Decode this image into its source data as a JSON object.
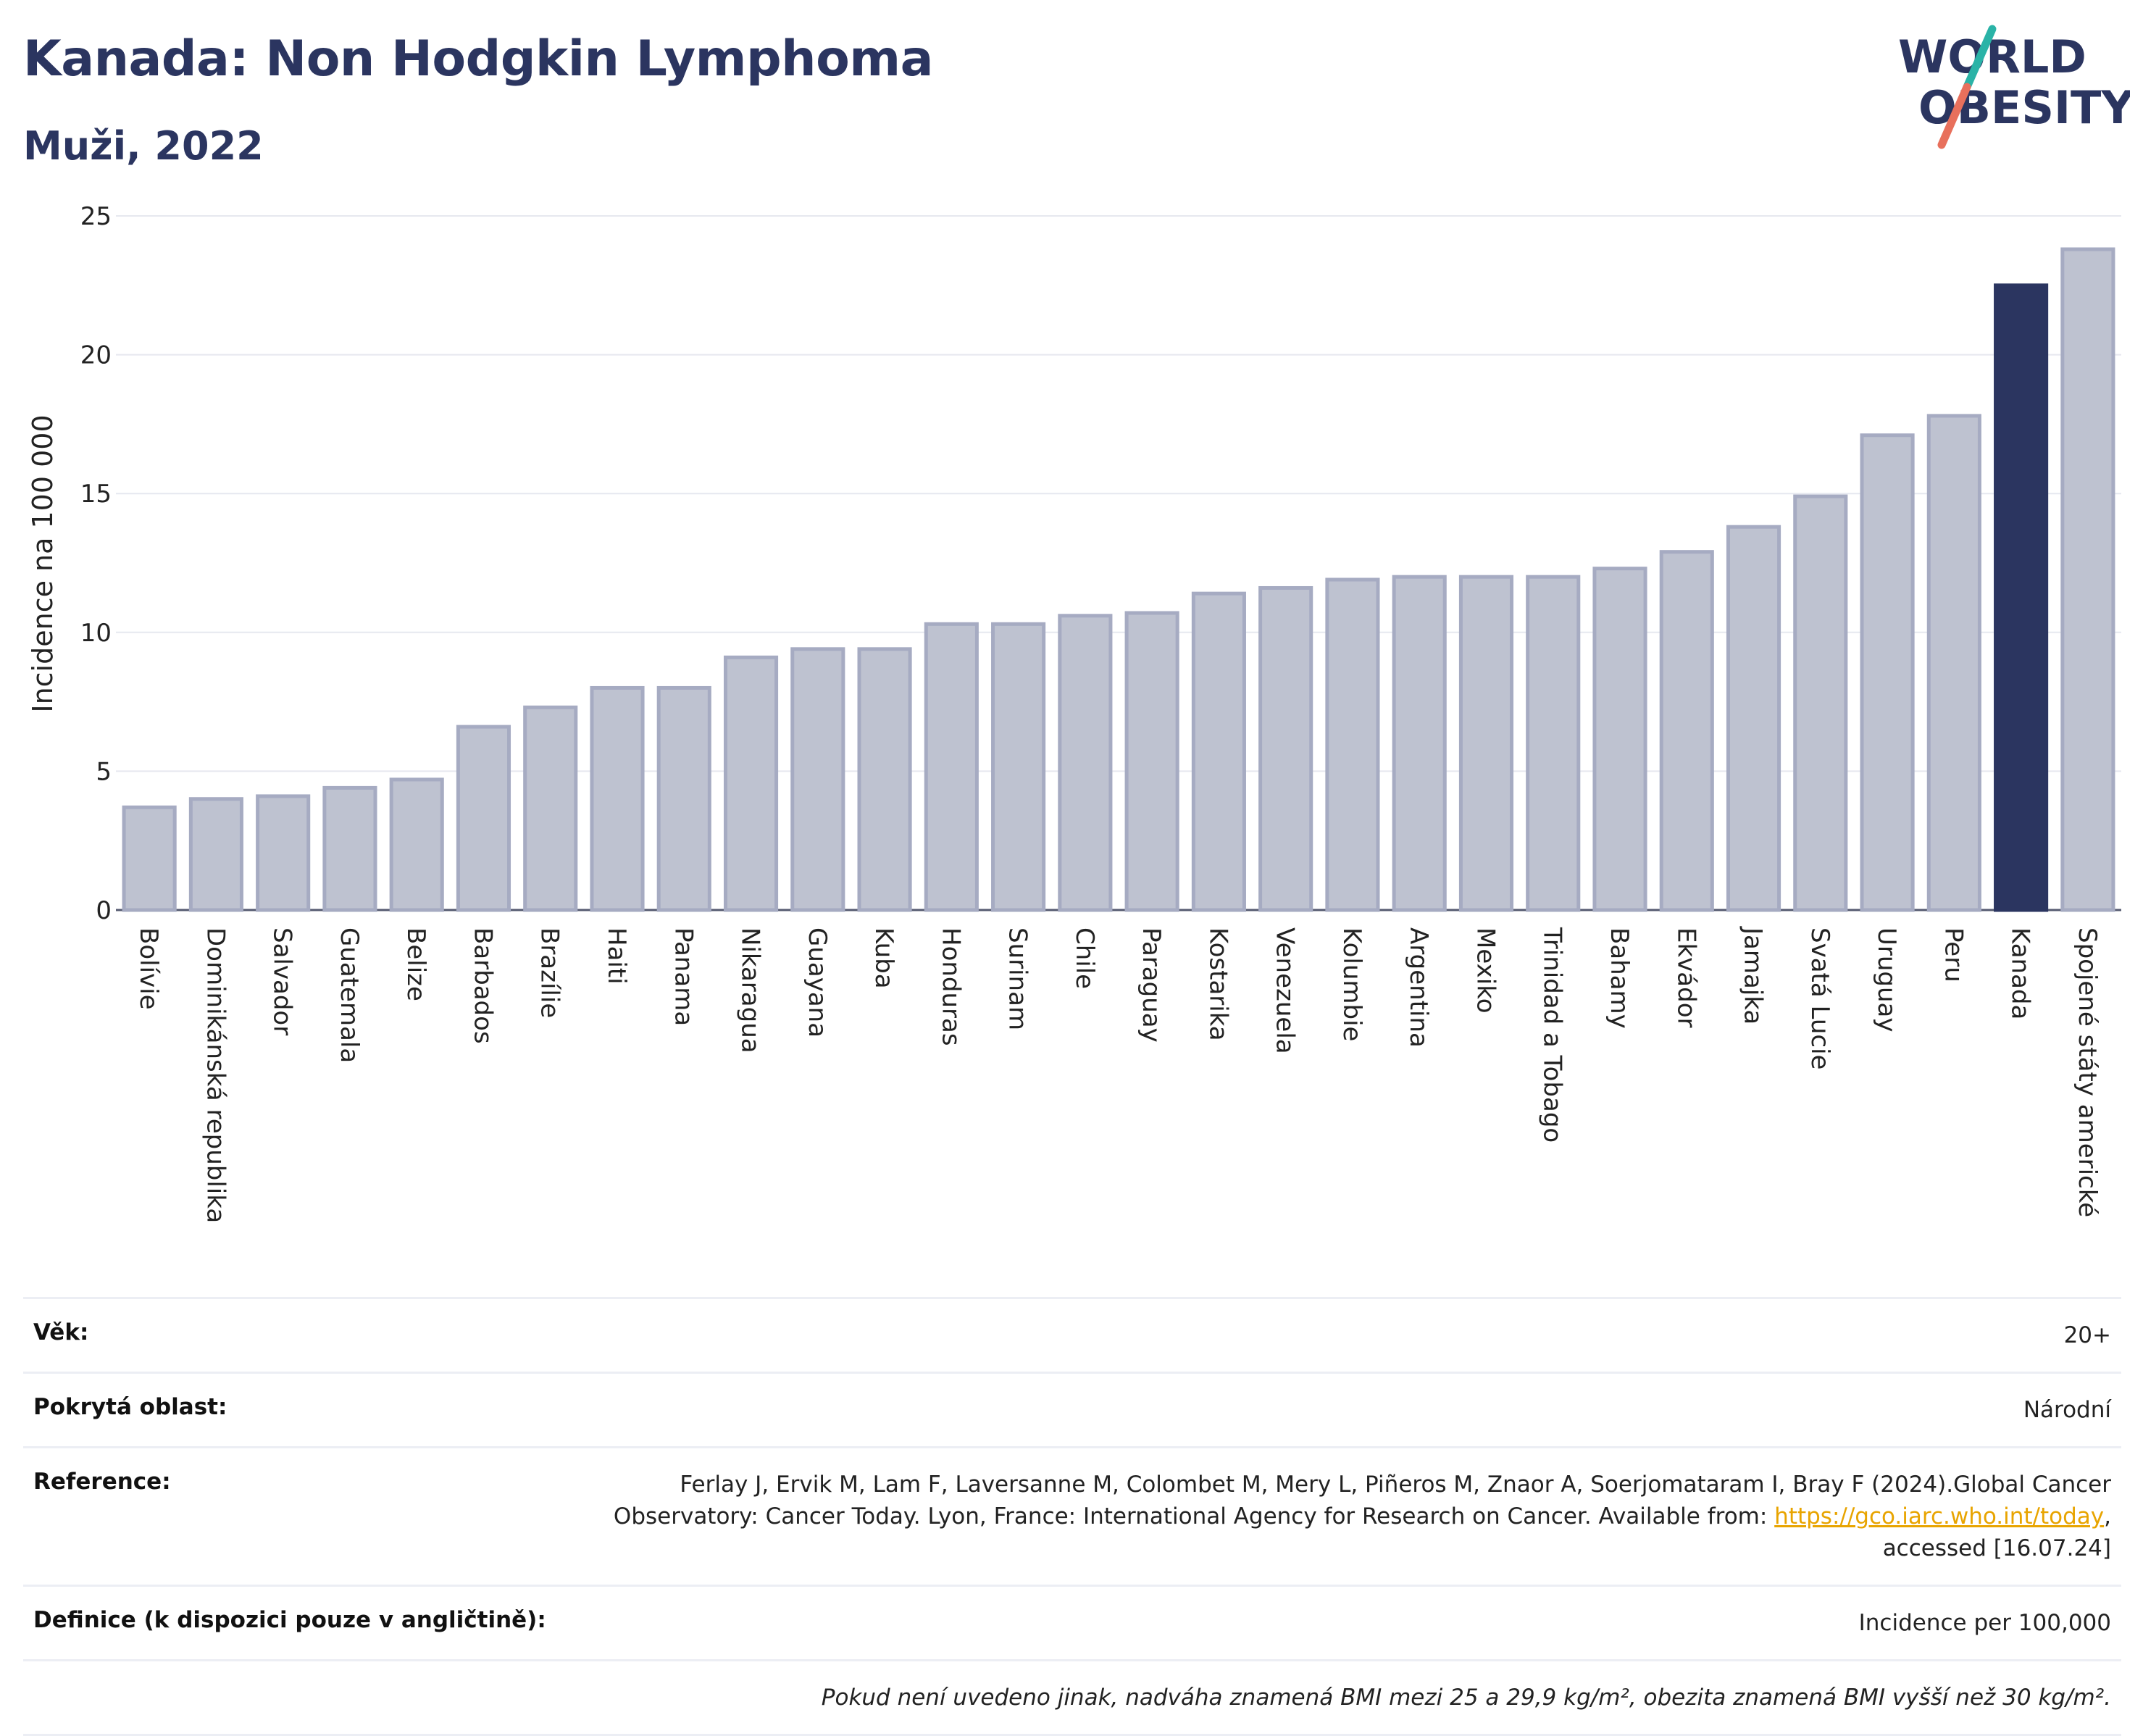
{
  "header": {
    "title": "Kanada: Non Hodgkin Lymphoma",
    "subtitle": "Muži, 2022",
    "logo_line1": "WORLD",
    "logo_line2": "OBESITY"
  },
  "colors": {
    "bar": "#bec2d0",
    "bar_border": "#a6abc2",
    "highlight": "#2b3560",
    "title": "#2b3560",
    "logo_teal": "#2ab3a7",
    "logo_coral": "#e8705c"
  },
  "chart_data": {
    "type": "bar",
    "ylabel": "Incidence na 100 000",
    "ylim": [
      0,
      25
    ],
    "yticks": [
      0,
      5,
      10,
      15,
      20,
      25
    ],
    "grid": true,
    "highlight": "Kanada",
    "categories": [
      "Bolívie",
      "Dominikánská republika",
      "Salvador",
      "Guatemala",
      "Belize",
      "Barbados",
      "Brazílie",
      "Haiti",
      "Panama",
      "Nikaragua",
      "Guayana",
      "Kuba",
      "Honduras",
      "Surinam",
      "Chile",
      "Paraguay",
      "Kostarika",
      "Venezuela",
      "Kolumbie",
      "Argentina",
      "Mexiko",
      "Trinidad a Tobago",
      "Bahamy",
      "Ekvádor",
      "Jamajka",
      "Svatá Lucie",
      "Uruguay",
      "Peru",
      "Kanada",
      "Spojené státy americké"
    ],
    "values": [
      3.7,
      4.0,
      4.1,
      4.4,
      4.7,
      6.6,
      7.3,
      8.0,
      8.0,
      9.1,
      9.4,
      9.4,
      10.3,
      10.3,
      10.6,
      10.7,
      11.4,
      11.6,
      11.9,
      12.0,
      12.0,
      12.0,
      12.3,
      12.9,
      13.8,
      14.9,
      17.1,
      17.8,
      22.5,
      23.8
    ]
  },
  "meta": {
    "rows": [
      {
        "label": "Věk:",
        "value": "20+"
      },
      {
        "label": "Pokrytá oblast:",
        "value": "Národní"
      },
      {
        "label": "Reference:",
        "value_pre": "Ferlay J, Ervik M, Lam F, Laversanne M, Colombet M, Mery L, Piñeros M, Znaor A, Soerjomataram I, Bray F (2024).Global Cancer Observatory: Cancer Today. Lyon, France: International Agency for Research on Cancer. Available from: ",
        "link": "https://gco.iarc.who.int/today",
        "value_post": ", accessed [16.07.24]"
      },
      {
        "label": "Definice (k dispozici pouze v angličtině):",
        "value": "Incidence per 100,000"
      }
    ],
    "note": "Pokud není uvedeno jinak, nadváha znamená BMI mezi 25 a 29,9 kg/m², obezita znamená BMI vyšší než 30 kg/m²."
  }
}
